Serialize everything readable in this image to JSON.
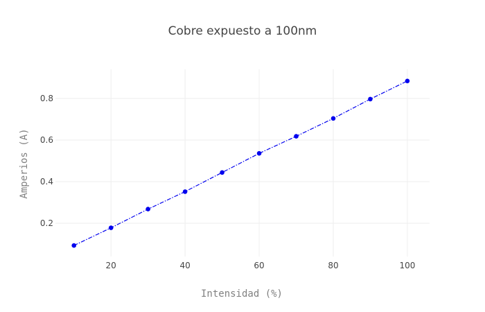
{
  "chart_data": {
    "type": "line",
    "title": "Cobre expuesto a 100nm",
    "xlabel": "Intensidad (%)",
    "ylabel": "Amperios (A)",
    "x": [
      10,
      20,
      30,
      40,
      50,
      60,
      70,
      80,
      90,
      100
    ],
    "series": [
      {
        "values": [
          0.093,
          0.178,
          0.268,
          0.352,
          0.444,
          0.536,
          0.618,
          0.704,
          0.797,
          0.884
        ],
        "color": "#0000ee",
        "line_style": "dashdot",
        "markers": true
      }
    ],
    "xlim": [
      5,
      106
    ],
    "ylim": [
      0.04,
      0.94
    ],
    "xticks": [
      20,
      40,
      60,
      80,
      100
    ],
    "yticks": [
      0.2,
      0.4,
      0.6,
      0.8
    ],
    "xtick_labels": [
      "20",
      "40",
      "60",
      "80",
      "100"
    ],
    "ytick_labels": [
      "0.2",
      "0.4",
      "0.6",
      "0.8"
    ],
    "grid": true,
    "legend": false
  }
}
